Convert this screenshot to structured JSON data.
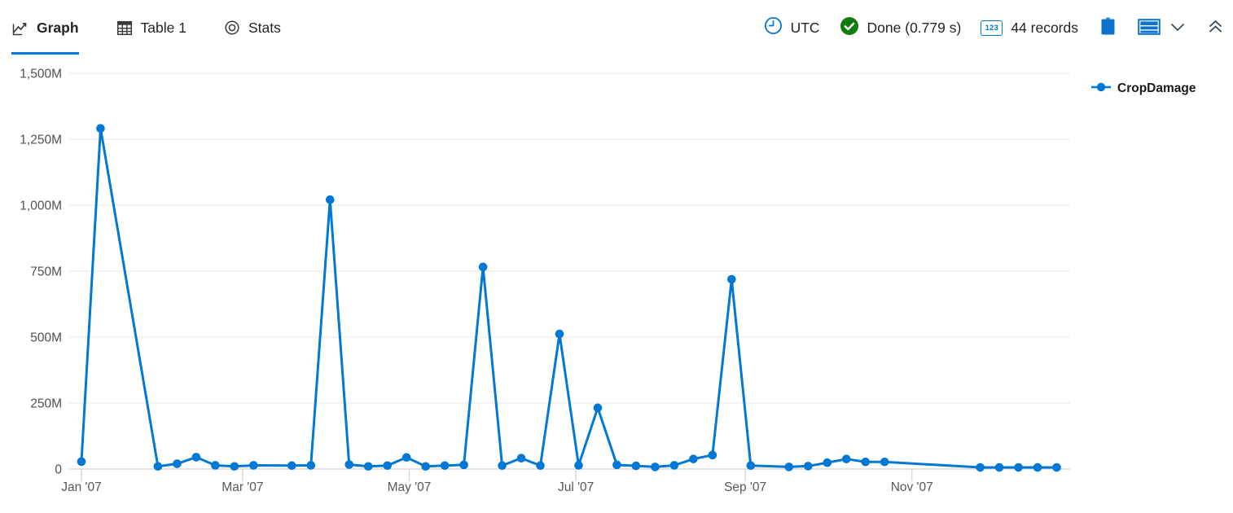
{
  "header": {
    "tabs": [
      {
        "label": "Graph",
        "active": true
      },
      {
        "label": "Table 1",
        "active": false
      },
      {
        "label": "Stats",
        "active": false
      }
    ],
    "timezone": "UTC",
    "status": "Done (0.779 s)",
    "records": "44 records",
    "numbers_badge": "123"
  },
  "colors": {
    "accent": "#0078d4",
    "success_green": "#107c10",
    "gridline": "#e8e7e6",
    "axis_line": "#c8c6c4",
    "axis_text": "#52504e"
  },
  "chart_data": {
    "type": "line",
    "title": "",
    "xlabel": "",
    "ylabel": "",
    "grid": true,
    "legend_position": "right",
    "ylim_millions": [
      0,
      1500
    ],
    "x_domain": [
      "2007-01-01",
      "2007-12-31"
    ],
    "y_ticks": [
      {
        "label": "0",
        "value_millions": 0
      },
      {
        "label": "250M",
        "value_millions": 250
      },
      {
        "label": "500M",
        "value_millions": 500
      },
      {
        "label": "750M",
        "value_millions": 750
      },
      {
        "label": "1,000M",
        "value_millions": 1000
      },
      {
        "label": "1,250M",
        "value_millions": 1250
      },
      {
        "label": "1,500M",
        "value_millions": 1500
      }
    ],
    "x_ticks": [
      {
        "label": "Jan '07",
        "date": "2007-01-01"
      },
      {
        "label": "Mar '07",
        "date": "2007-03-01"
      },
      {
        "label": "May '07",
        "date": "2007-05-01"
      },
      {
        "label": "Jul '07",
        "date": "2007-07-01"
      },
      {
        "label": "Sep '07",
        "date": "2007-09-01"
      },
      {
        "label": "Nov '07",
        "date": "2007-11-01"
      }
    ],
    "series": [
      {
        "name": "CropDamage",
        "color": "#0078d4",
        "points": [
          {
            "date": "2007-01-01",
            "value_millions": 28
          },
          {
            "date": "2007-01-08",
            "value_millions": 1291
          },
          {
            "date": "2007-01-29",
            "value_millions": 10
          },
          {
            "date": "2007-02-05",
            "value_millions": 20
          },
          {
            "date": "2007-02-12",
            "value_millions": 45
          },
          {
            "date": "2007-02-19",
            "value_millions": 14
          },
          {
            "date": "2007-02-26",
            "value_millions": 10
          },
          {
            "date": "2007-03-05",
            "value_millions": 14
          },
          {
            "date": "2007-03-19",
            "value_millions": 13
          },
          {
            "date": "2007-03-26",
            "value_millions": 14
          },
          {
            "date": "2007-04-02",
            "value_millions": 1021
          },
          {
            "date": "2007-04-09",
            "value_millions": 17
          },
          {
            "date": "2007-04-16",
            "value_millions": 10
          },
          {
            "date": "2007-04-23",
            "value_millions": 13
          },
          {
            "date": "2007-04-30",
            "value_millions": 44
          },
          {
            "date": "2007-05-07",
            "value_millions": 10
          },
          {
            "date": "2007-05-14",
            "value_millions": 13
          },
          {
            "date": "2007-05-21",
            "value_millions": 16
          },
          {
            "date": "2007-05-28",
            "value_millions": 766
          },
          {
            "date": "2007-06-04",
            "value_millions": 13
          },
          {
            "date": "2007-06-11",
            "value_millions": 41
          },
          {
            "date": "2007-06-18",
            "value_millions": 13
          },
          {
            "date": "2007-06-25",
            "value_millions": 512
          },
          {
            "date": "2007-07-02",
            "value_millions": 14
          },
          {
            "date": "2007-07-09",
            "value_millions": 232
          },
          {
            "date": "2007-07-16",
            "value_millions": 16
          },
          {
            "date": "2007-07-23",
            "value_millions": 12
          },
          {
            "date": "2007-07-30",
            "value_millions": 8
          },
          {
            "date": "2007-08-06",
            "value_millions": 14
          },
          {
            "date": "2007-08-13",
            "value_millions": 38
          },
          {
            "date": "2007-08-20",
            "value_millions": 53
          },
          {
            "date": "2007-08-27",
            "value_millions": 719
          },
          {
            "date": "2007-09-03",
            "value_millions": 13
          },
          {
            "date": "2007-09-17",
            "value_millions": 8
          },
          {
            "date": "2007-09-24",
            "value_millions": 11
          },
          {
            "date": "2007-10-01",
            "value_millions": 24
          },
          {
            "date": "2007-10-08",
            "value_millions": 38
          },
          {
            "date": "2007-10-15",
            "value_millions": 27
          },
          {
            "date": "2007-10-22",
            "value_millions": 27
          },
          {
            "date": "2007-11-26",
            "value_millions": 6
          },
          {
            "date": "2007-12-03",
            "value_millions": 6
          },
          {
            "date": "2007-12-10",
            "value_millions": 6
          },
          {
            "date": "2007-12-17",
            "value_millions": 6
          },
          {
            "date": "2007-12-24",
            "value_millions": 6
          }
        ]
      }
    ]
  }
}
